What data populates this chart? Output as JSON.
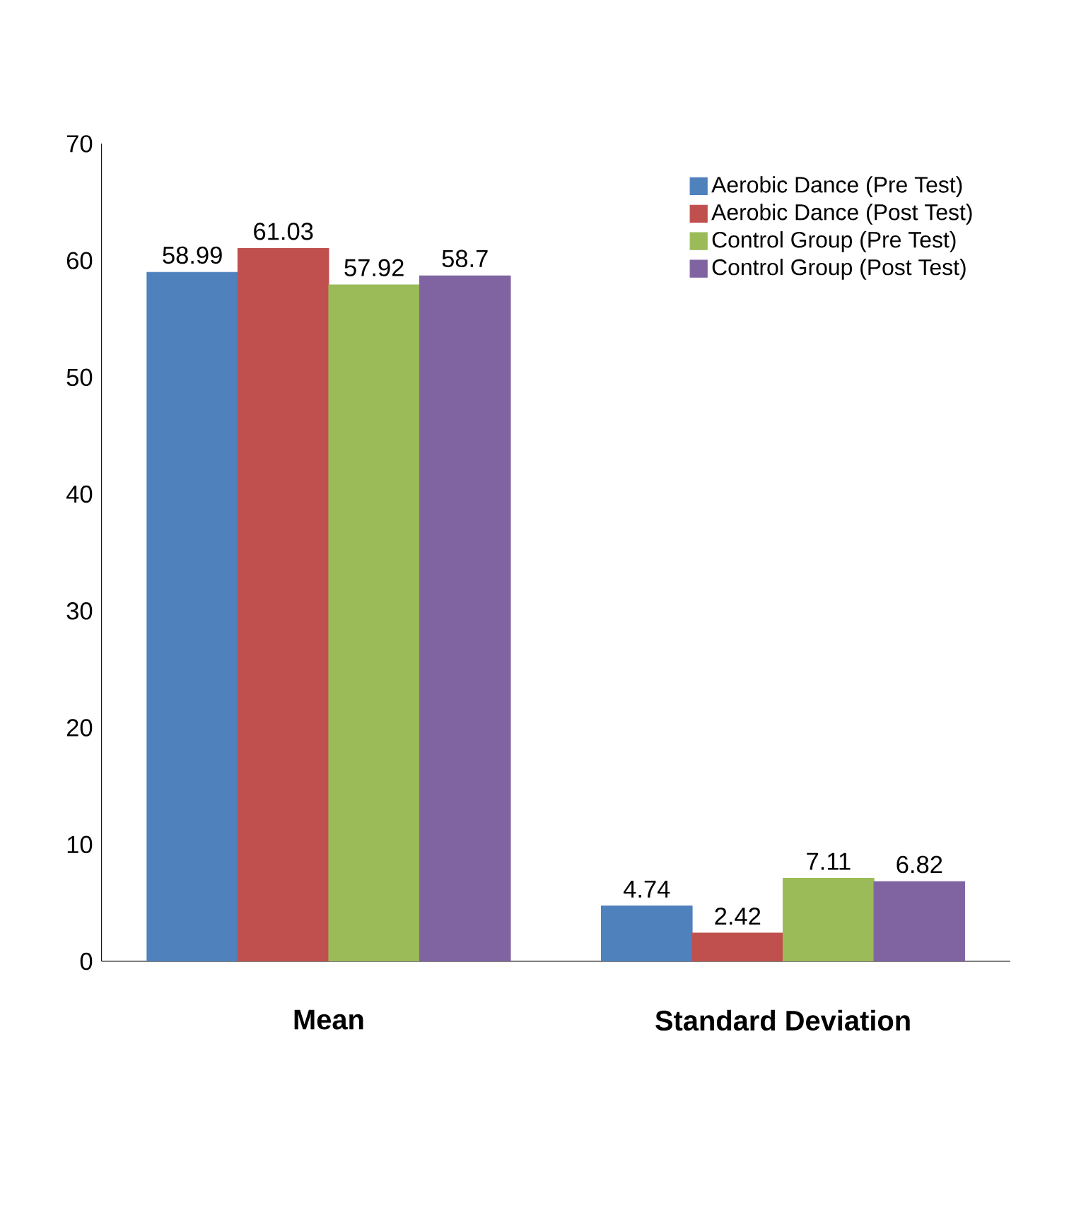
{
  "chart_data": {
    "type": "bar",
    "categories": [
      "Mean",
      "Standard Deviation"
    ],
    "series": [
      {
        "name": "Aerobic Dance  (Pre Test)",
        "color": "#4f81bd",
        "values": [
          58.99,
          4.74
        ]
      },
      {
        "name": "Aerobic Dance  (Post Test)",
        "color": "#c0504d",
        "values": [
          61.03,
          2.42
        ]
      },
      {
        "name": "Control Group (Pre Test)",
        "color": "#9bbb59",
        "values": [
          57.92,
          7.11
        ]
      },
      {
        "name": "Control Group (Post Test)",
        "color": "#8064a2",
        "values": [
          58.7,
          6.82
        ]
      }
    ],
    "ylim": [
      0,
      70
    ],
    "yticks": [
      0,
      10,
      20,
      30,
      40,
      50,
      60,
      70
    ],
    "data_labels": true,
    "legend": "top right",
    "grid": false
  }
}
